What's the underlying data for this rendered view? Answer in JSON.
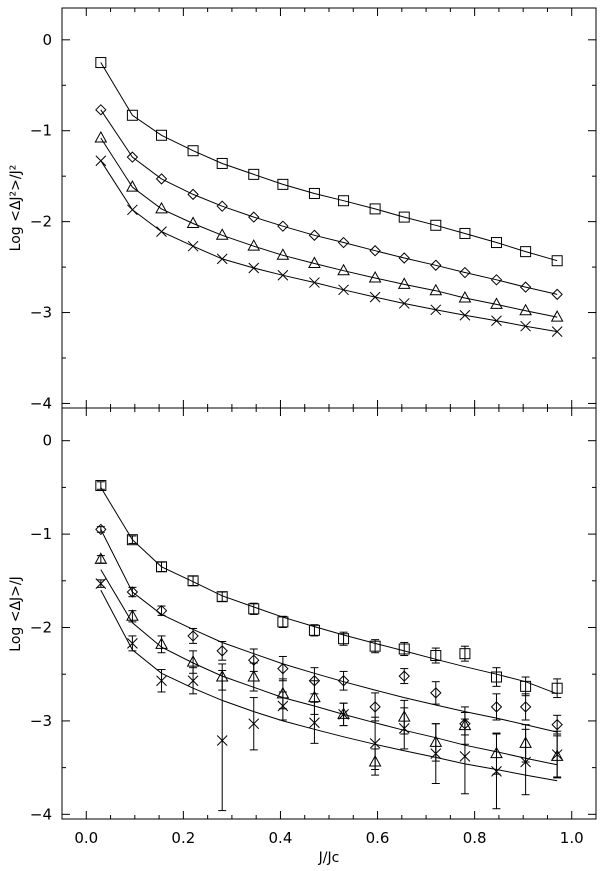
{
  "chart_data": [
    {
      "type": "line",
      "panel": "top",
      "ylabel": "Log <ΔJ²>/J²",
      "xlabel": "",
      "xlim": [
        -0.05,
        1.05
      ],
      "ylim": [
        -4.05,
        0.35
      ],
      "xticks": [
        0.0,
        0.2,
        0.4,
        0.6,
        0.8,
        1.0
      ],
      "yticks": [
        0,
        -1,
        -2,
        -3,
        -4
      ],
      "ytick_labels": [
        "0",
        "−1",
        "−2",
        "−3",
        "−4"
      ],
      "x": [
        0.03,
        0.095,
        0.155,
        0.22,
        0.28,
        0.345,
        0.405,
        0.47,
        0.53,
        0.595,
        0.655,
        0.72,
        0.78,
        0.845,
        0.905,
        0.97
      ],
      "series": [
        {
          "marker": "square",
          "values": [
            -0.25,
            -0.83,
            -1.05,
            -1.22,
            -1.36,
            -1.48,
            -1.59,
            -1.69,
            -1.77,
            -1.86,
            -1.95,
            -2.04,
            -2.13,
            -2.23,
            -2.33,
            -2.43
          ],
          "curve": [
            -0.25,
            -0.83,
            -1.05,
            -1.22,
            -1.36,
            -1.48,
            -1.59,
            -1.69,
            -1.77,
            -1.86,
            -1.95,
            -2.04,
            -2.13,
            -2.23,
            -2.33,
            -2.43
          ]
        },
        {
          "marker": "diamond",
          "values": [
            -0.77,
            -1.29,
            -1.53,
            -1.7,
            -1.83,
            -1.95,
            -2.05,
            -2.15,
            -2.23,
            -2.32,
            -2.4,
            -2.48,
            -2.56,
            -2.64,
            -2.72,
            -2.8
          ],
          "curve": [
            -0.77,
            -1.29,
            -1.53,
            -1.7,
            -1.83,
            -1.95,
            -2.05,
            -2.15,
            -2.23,
            -2.32,
            -2.4,
            -2.48,
            -2.56,
            -2.64,
            -2.72,
            -2.8
          ]
        },
        {
          "marker": "triangle",
          "values": [
            -1.08,
            -1.62,
            -1.86,
            -2.02,
            -2.15,
            -2.27,
            -2.37,
            -2.46,
            -2.54,
            -2.62,
            -2.69,
            -2.76,
            -2.84,
            -2.91,
            -2.98,
            -3.05
          ],
          "curve": [
            -1.08,
            -1.62,
            -1.86,
            -2.02,
            -2.15,
            -2.27,
            -2.37,
            -2.46,
            -2.54,
            -2.62,
            -2.69,
            -2.76,
            -2.84,
            -2.91,
            -2.98,
            -3.05
          ]
        },
        {
          "marker": "cross",
          "values": [
            -1.33,
            -1.87,
            -2.11,
            -2.27,
            -2.41,
            -2.51,
            -2.59,
            -2.67,
            -2.75,
            -2.83,
            -2.9,
            -2.97,
            -3.03,
            -3.09,
            -3.15,
            -3.21
          ],
          "curve": [
            -1.33,
            -1.87,
            -2.11,
            -2.27,
            -2.41,
            -2.51,
            -2.59,
            -2.67,
            -2.75,
            -2.83,
            -2.9,
            -2.97,
            -3.03,
            -3.09,
            -3.15,
            -3.21
          ]
        }
      ]
    },
    {
      "type": "line",
      "panel": "bottom",
      "ylabel": "Log <ΔJ>/J",
      "xlabel": "J/Jc",
      "xlim": [
        -0.05,
        1.05
      ],
      "ylim": [
        -4.05,
        0.35
      ],
      "xticks": [
        0.0,
        0.2,
        0.4,
        0.6,
        0.8,
        1.0
      ],
      "xtick_labels": [
        "0.0",
        "0.2",
        "0.4",
        "0.6",
        "0.8",
        "1.0"
      ],
      "yticks": [
        0,
        -1,
        -2,
        -3,
        -4
      ],
      "ytick_labels": [
        "0",
        "−1",
        "−2",
        "−3",
        "−4"
      ],
      "x": [
        0.03,
        0.095,
        0.155,
        0.22,
        0.28,
        0.345,
        0.405,
        0.47,
        0.53,
        0.595,
        0.655,
        0.72,
        0.78,
        0.845,
        0.905,
        0.97
      ],
      "series": [
        {
          "marker": "square",
          "values": [
            -0.48,
            -1.06,
            -1.35,
            -1.5,
            -1.67,
            -1.8,
            -1.94,
            -2.03,
            -2.12,
            -2.2,
            -2.23,
            -2.3,
            -2.28,
            -2.53,
            -2.63,
            -2.65
          ],
          "errors": [
            0.04,
            0.04,
            0.05,
            0.05,
            0.05,
            0.06,
            0.06,
            0.06,
            0.07,
            0.07,
            0.07,
            0.08,
            0.08,
            0.1,
            0.1,
            0.1
          ],
          "curve": [
            -0.5,
            -1.06,
            -1.35,
            -1.51,
            -1.66,
            -1.78,
            -1.89,
            -1.99,
            -2.08,
            -2.17,
            -2.25,
            -2.34,
            -2.42,
            -2.5,
            -2.58,
            -2.71
          ]
        },
        {
          "marker": "diamond",
          "values": [
            -0.95,
            -1.62,
            -1.82,
            -2.09,
            -2.25,
            -2.35,
            -2.44,
            -2.57,
            -2.57,
            -2.85,
            -2.52,
            -2.7,
            -3.03,
            -2.85,
            -2.85,
            -3.04
          ],
          "errors": [
            0.03,
            0.05,
            0.05,
            0.08,
            0.1,
            0.12,
            0.13,
            0.14,
            0.1,
            0.15,
            0.08,
            0.12,
            0.12,
            0.14,
            0.14,
            0.1
          ],
          "curve": [
            -0.95,
            -1.62,
            -1.86,
            -2.02,
            -2.16,
            -2.28,
            -2.39,
            -2.49,
            -2.58,
            -2.67,
            -2.75,
            -2.83,
            -2.9,
            -2.97,
            -3.04,
            -3.12
          ]
        },
        {
          "marker": "triangle",
          "values": [
            -1.27,
            -1.88,
            -2.18,
            -2.37,
            -2.53,
            -2.53,
            -2.71,
            -2.75,
            -2.93,
            -3.44,
            -2.96,
            -3.23,
            -3.05,
            -3.35,
            -3.24,
            -3.38
          ],
          "errors": [
            0.04,
            0.06,
            0.09,
            0.12,
            0.14,
            0.15,
            0.16,
            0.18,
            0.12,
            0.14,
            0.18,
            0.2,
            0.2,
            0.22,
            0.2,
            0.22
          ],
          "curve": [
            -1.38,
            -1.95,
            -2.21,
            -2.38,
            -2.52,
            -2.64,
            -2.75,
            -2.84,
            -2.93,
            -3.02,
            -3.1,
            -3.18,
            -3.26,
            -3.33,
            -3.4,
            -3.47
          ]
        },
        {
          "marker": "cross",
          "values": [
            -1.53,
            -2.17,
            -2.57,
            -2.57,
            -3.21,
            -3.03,
            -2.84,
            -3.02,
            -2.93,
            -3.24,
            -3.08,
            -3.35,
            -3.38,
            -3.54,
            -3.44,
            -3.36
          ],
          "errors": [
            0.04,
            0.08,
            0.12,
            0.14,
            0.75,
            0.28,
            0.15,
            0.22,
            0.12,
            0.28,
            0.22,
            0.32,
            0.4,
            0.4,
            0.35,
            0.25
          ],
          "curve": [
            -1.6,
            -2.24,
            -2.49,
            -2.65,
            -2.78,
            -2.9,
            -3.0,
            -3.09,
            -3.17,
            -3.25,
            -3.32,
            -3.39,
            -3.46,
            -3.52,
            -3.58,
            -3.64
          ]
        }
      ]
    }
  ]
}
